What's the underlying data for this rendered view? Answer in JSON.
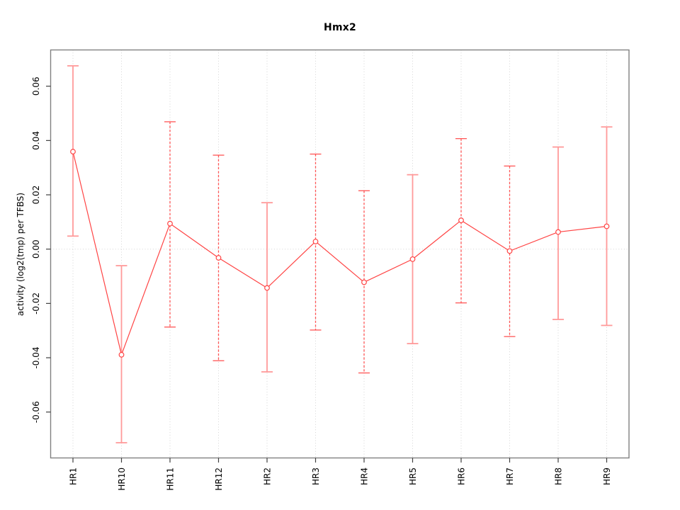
{
  "chart_data": {
    "type": "line",
    "title": "Hmx2",
    "xlabel": "",
    "ylabel": "activity (log2(tmp) per TFBS)",
    "categories": [
      "HR1",
      "HR10",
      "HR11",
      "HR12",
      "HR2",
      "HR3",
      "HR4",
      "HR5",
      "HR6",
      "HR7",
      "HR8",
      "HR9"
    ],
    "series": [
      {
        "name": "activity",
        "values": [
          0.0359,
          -0.0389,
          0.0094,
          -0.0032,
          -0.0143,
          0.0028,
          -0.0122,
          -0.0037,
          0.0106,
          -0.0007,
          0.0063,
          0.0084
        ],
        "lower": [
          0.0048,
          -0.0713,
          -0.0287,
          -0.0411,
          -0.0452,
          -0.0298,
          -0.0456,
          -0.0348,
          -0.0198,
          -0.0322,
          -0.0259,
          -0.0281
        ],
        "upper": [
          0.0675,
          -0.0061,
          0.0469,
          0.0346,
          0.0171,
          0.035,
          0.0215,
          0.0274,
          0.0407,
          0.0306,
          0.0376,
          0.045
        ],
        "error_bar_style": [
          "solid",
          "solid",
          "dashed",
          "dashed",
          "solid",
          "dashed",
          "dashed",
          "solid",
          "dashed",
          "dashed",
          "solid",
          "solid"
        ]
      }
    ],
    "y_axis": {
      "ticks": [
        0.06,
        0.04,
        0.02,
        0.0,
        -0.02,
        -0.04,
        -0.06
      ],
      "tick_labels": [
        "0.06",
        "0.04",
        "0.02",
        "0.00",
        "-0.02",
        "-0.04",
        "-0.06"
      ],
      "ylim": [
        -0.077,
        0.0735
      ]
    },
    "grid": {
      "vertical_dotted_at_each_category": true,
      "horizontal_dotted_at_zero": true
    },
    "legend": "none",
    "colors": {
      "series_line": "#ff4444",
      "point_stroke": "#ff4444",
      "point_fill": "#ffffff",
      "error_bar_solid": "#ff9a9a",
      "error_bar_dashed": "#ff5555",
      "grid": "#d4d4d4",
      "plot_border": "#808080",
      "tick": "#404040",
      "text": "#000000"
    }
  }
}
